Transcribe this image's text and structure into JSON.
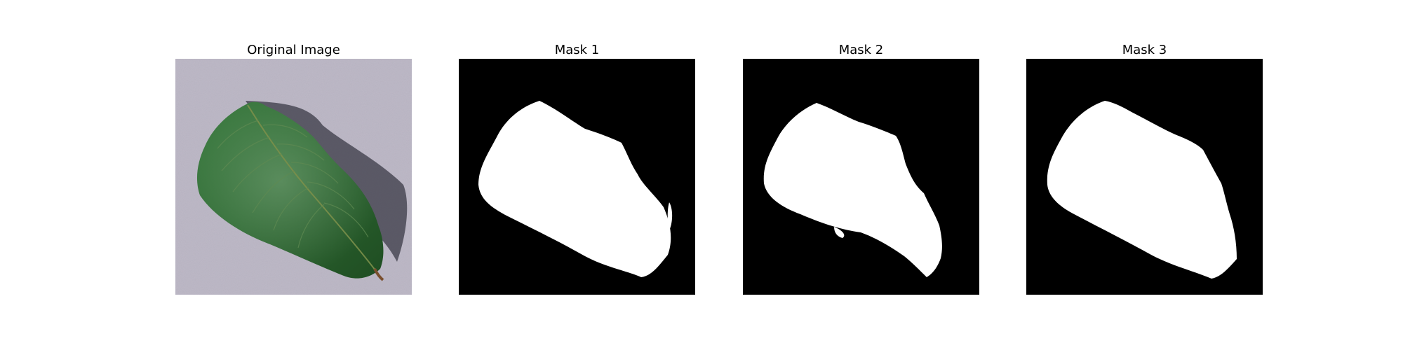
{
  "panels": [
    {
      "title": "Original Image",
      "kind": "photo"
    },
    {
      "title": "Mask 1",
      "kind": "mask"
    },
    {
      "title": "Mask 2",
      "kind": "mask"
    },
    {
      "title": "Mask 3",
      "kind": "mask"
    }
  ],
  "colors": {
    "background": "#ffffff",
    "surface": "#bdb8c6",
    "leaf_dark": "#1e4a20",
    "leaf_mid": "#2f6b33",
    "leaf_light": "#4f8b55",
    "stem": "#7a4f2e",
    "mask_bg": "#000000",
    "mask_fg": "#ffffff"
  },
  "icons": {
    "photo": "leaf-photo",
    "mask": "binary-mask"
  }
}
